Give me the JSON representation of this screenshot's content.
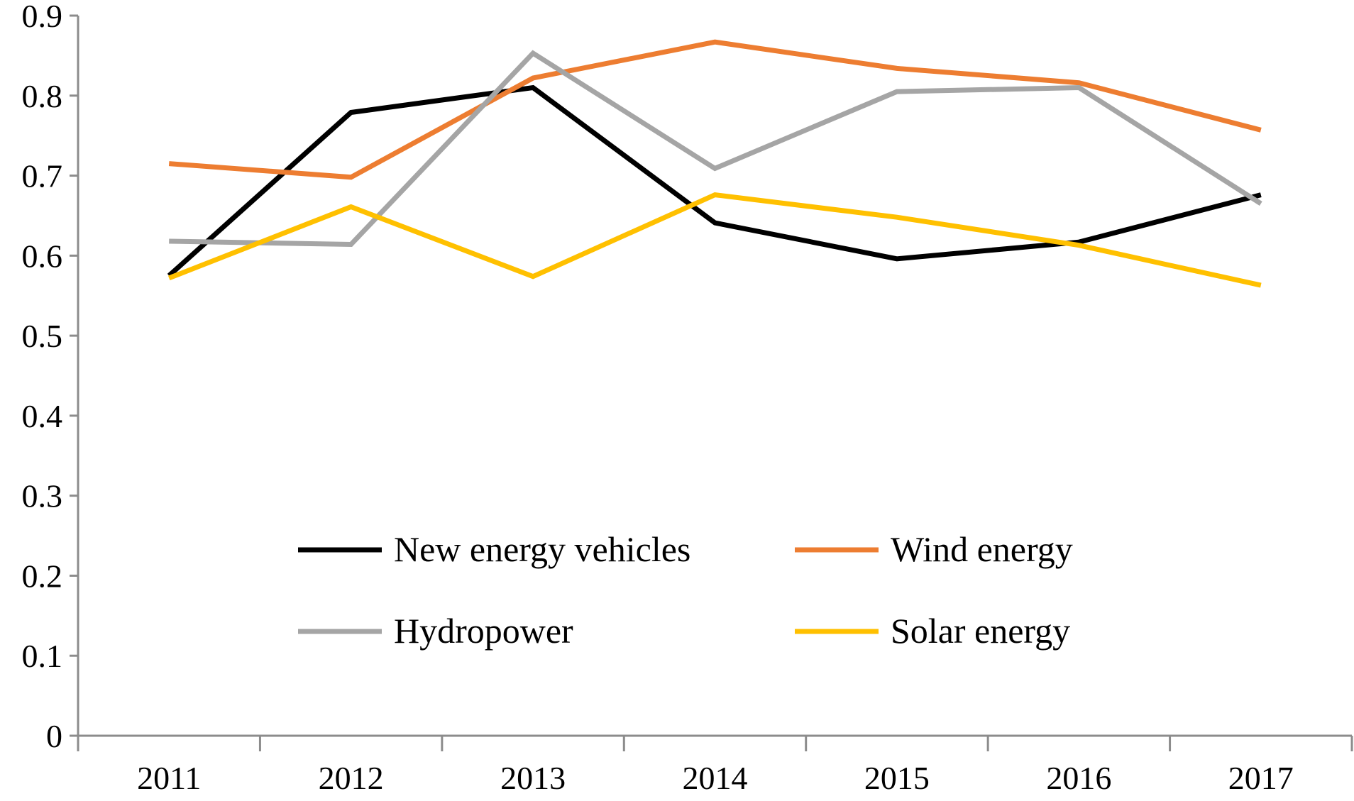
{
  "chart_data": {
    "type": "line",
    "title": "",
    "xlabel": "",
    "ylabel": "",
    "ylim": [
      0,
      0.9
    ],
    "yticks": [
      "0",
      "0.1",
      "0.2",
      "0.3",
      "0.4",
      "0.5",
      "0.6",
      "0.7",
      "0.8",
      "0.9"
    ],
    "categories": [
      "2011",
      "2012",
      "2013",
      "2014",
      "2015",
      "2016",
      "2017"
    ],
    "grid": false,
    "legend_position": "bottom-center",
    "series": [
      {
        "name": "New energy vehicles",
        "color": "#000000",
        "values": [
          0.575,
          0.779,
          0.81,
          0.641,
          0.596,
          0.617,
          0.676
        ]
      },
      {
        "name": "Wind energy",
        "color": "#ed7d31",
        "values": [
          0.715,
          0.698,
          0.822,
          0.867,
          0.834,
          0.816,
          0.757
        ]
      },
      {
        "name": "Hydropower",
        "color": "#a5a5a5",
        "values": [
          0.618,
          0.614,
          0.853,
          0.709,
          0.805,
          0.81,
          0.665
        ]
      },
      {
        "name": "Solar energy",
        "color": "#ffc000",
        "values": [
          0.572,
          0.661,
          0.574,
          0.676,
          0.648,
          0.613,
          0.563
        ]
      }
    ]
  }
}
